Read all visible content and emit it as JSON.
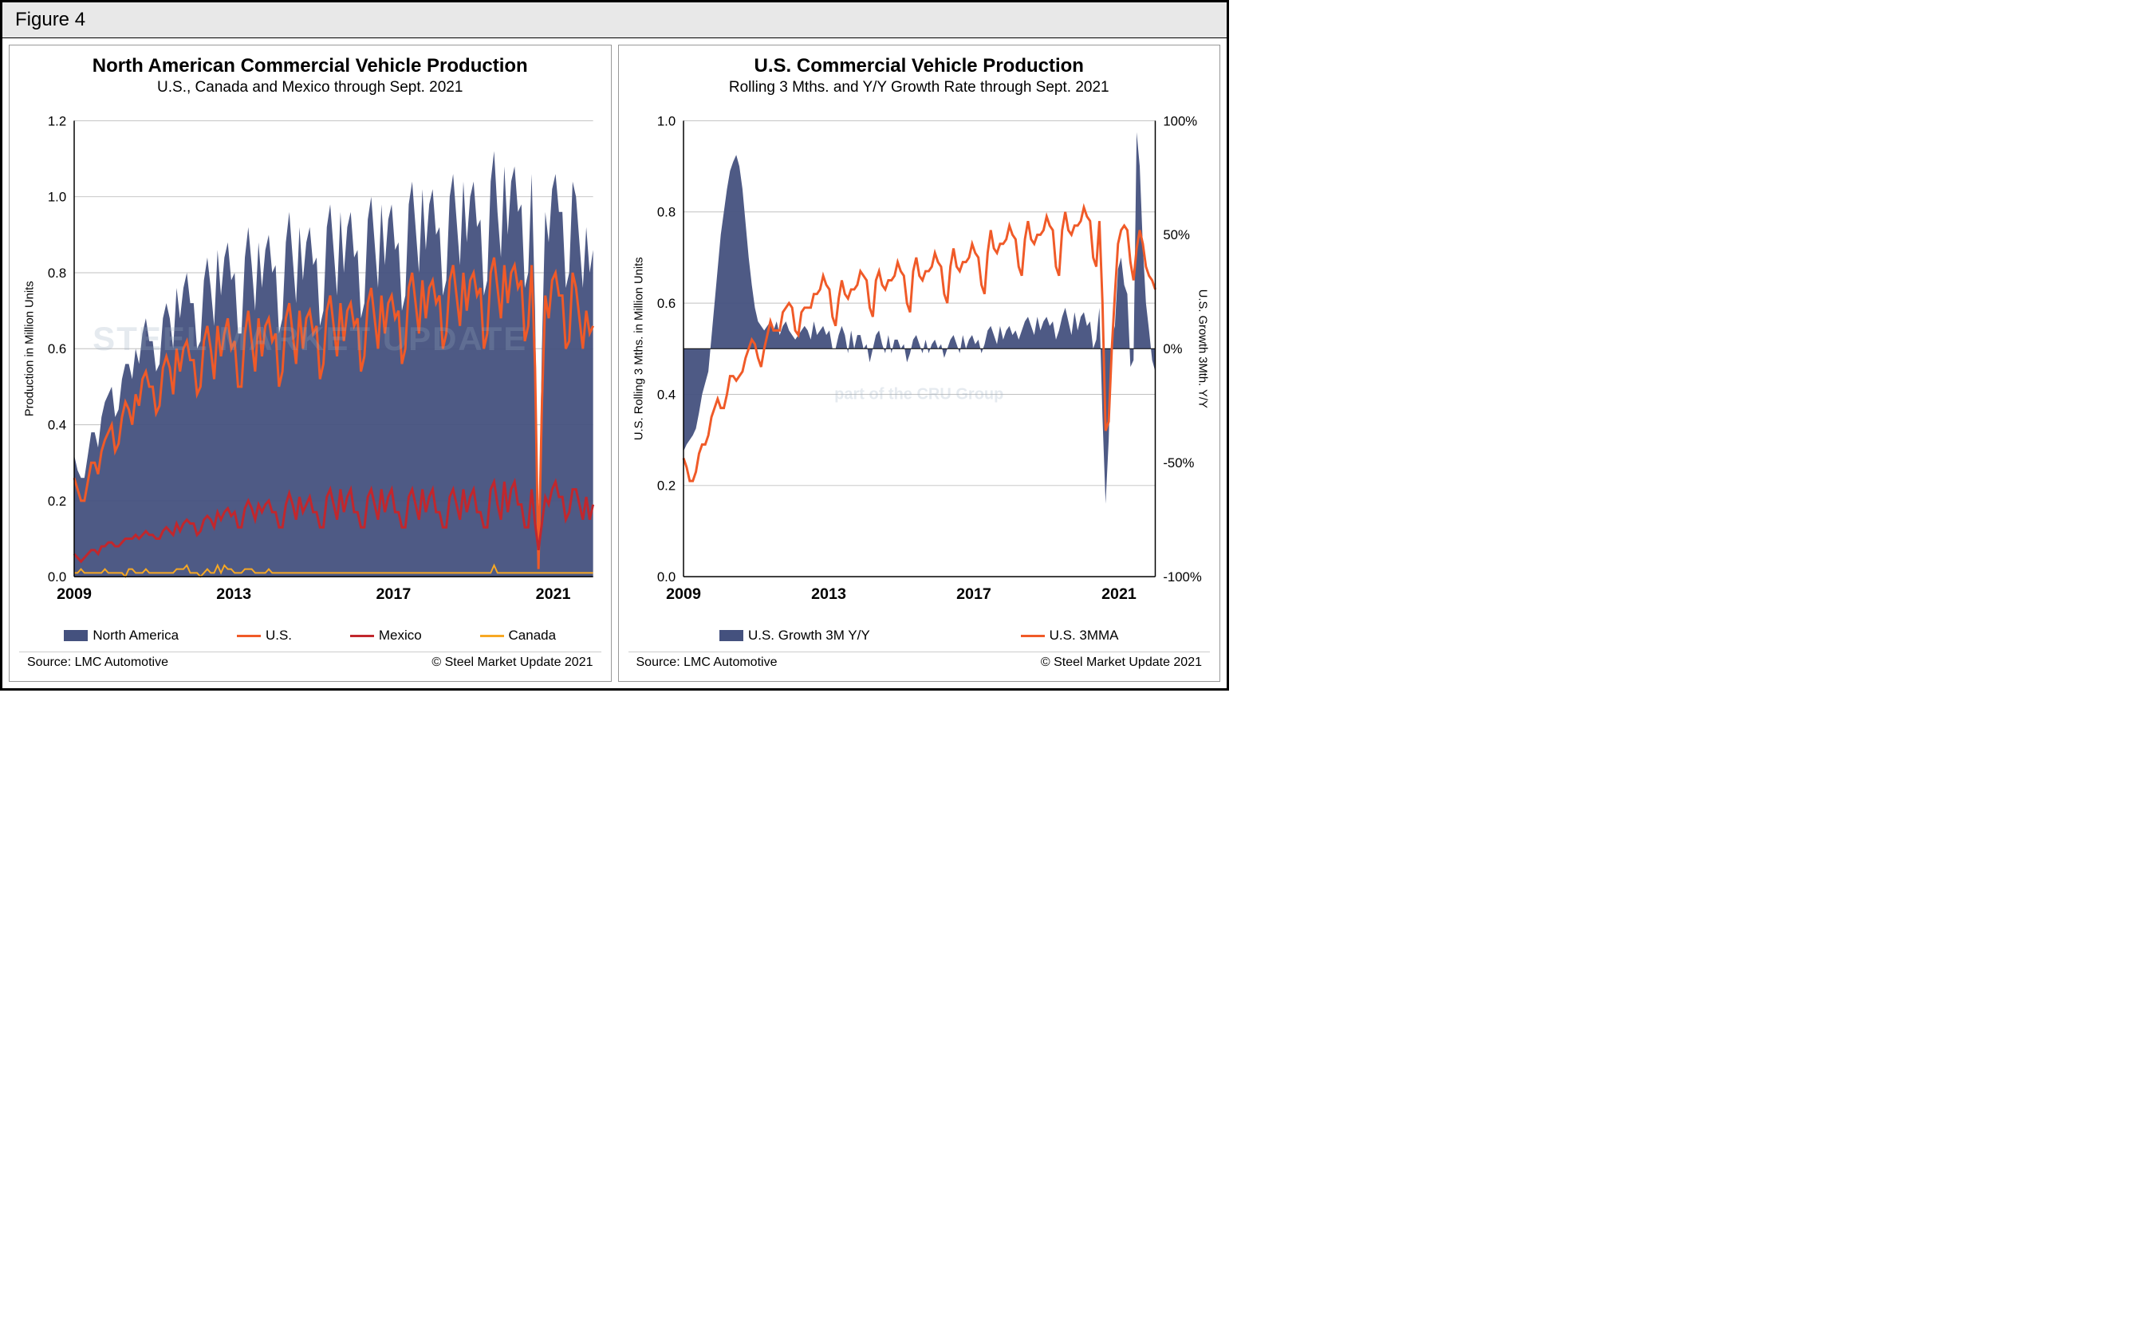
{
  "figure_label": "Figure 4",
  "watermark_main": "STEEL MARKET UPDATE",
  "watermark_sub": "part of the CRU Group",
  "left_chart": {
    "type": "area+line",
    "title": "North American Commercial Vehicle Production",
    "subtitle": "U.S., Canada and Mexico through Sept. 2021",
    "y_axis_label": "Production in Million Units",
    "x_ticks": [
      "2009",
      "2013",
      "2017",
      "2021"
    ],
    "y_ticks": [
      "0.0",
      "0.2",
      "0.4",
      "0.6",
      "0.8",
      "1.0",
      "1.2"
    ],
    "ylim": [
      0.0,
      1.2
    ],
    "xlim": [
      2009,
      2022
    ],
    "background_color": "#ffffff",
    "grid_color": "#c0c0c0",
    "series": {
      "north_america": {
        "type": "area",
        "color": "#44517e",
        "label": "North America",
        "data": [
          0.32,
          0.28,
          0.26,
          0.26,
          0.32,
          0.38,
          0.38,
          0.34,
          0.42,
          0.46,
          0.48,
          0.5,
          0.42,
          0.44,
          0.52,
          0.56,
          0.56,
          0.52,
          0.6,
          0.56,
          0.64,
          0.68,
          0.62,
          0.62,
          0.54,
          0.56,
          0.68,
          0.72,
          0.68,
          0.6,
          0.76,
          0.68,
          0.76,
          0.8,
          0.72,
          0.72,
          0.6,
          0.62,
          0.78,
          0.84,
          0.76,
          0.66,
          0.86,
          0.74,
          0.84,
          0.88,
          0.78,
          0.8,
          0.64,
          0.64,
          0.84,
          0.92,
          0.82,
          0.7,
          0.88,
          0.76,
          0.86,
          0.9,
          0.8,
          0.82,
          0.64,
          0.68,
          0.88,
          0.96,
          0.84,
          0.72,
          0.92,
          0.78,
          0.88,
          0.92,
          0.82,
          0.84,
          0.66,
          0.7,
          0.92,
          0.98,
          0.86,
          0.74,
          0.96,
          0.8,
          0.92,
          0.96,
          0.84,
          0.86,
          0.68,
          0.72,
          0.94,
          1.0,
          0.88,
          0.76,
          0.98,
          0.82,
          0.94,
          0.98,
          0.86,
          0.88,
          0.7,
          0.74,
          0.98,
          1.04,
          0.92,
          0.8,
          1.02,
          0.86,
          0.98,
          1.02,
          0.9,
          0.92,
          0.74,
          0.78,
          1.0,
          1.06,
          0.94,
          0.82,
          1.04,
          0.88,
          1.0,
          1.04,
          0.92,
          0.94,
          0.74,
          0.78,
          1.04,
          1.12,
          0.96,
          0.84,
          1.08,
          0.9,
          1.04,
          1.08,
          0.96,
          0.98,
          0.76,
          0.8,
          1.06,
          0.7,
          0.1,
          0.6,
          0.96,
          0.88,
          1.02,
          1.06,
          0.96,
          0.96,
          0.76,
          0.8,
          1.04,
          1.0,
          0.88,
          0.76,
          0.92,
          0.8,
          0.86
        ]
      },
      "us": {
        "type": "line",
        "color": "#f05a28",
        "width": 3,
        "label": "U.S.",
        "data": [
          0.26,
          0.23,
          0.2,
          0.2,
          0.25,
          0.3,
          0.3,
          0.27,
          0.33,
          0.36,
          0.38,
          0.4,
          0.33,
          0.35,
          0.42,
          0.46,
          0.44,
          0.4,
          0.48,
          0.45,
          0.52,
          0.54,
          0.5,
          0.5,
          0.43,
          0.45,
          0.55,
          0.58,
          0.55,
          0.48,
          0.6,
          0.54,
          0.6,
          0.62,
          0.57,
          0.57,
          0.48,
          0.5,
          0.62,
          0.66,
          0.6,
          0.52,
          0.66,
          0.58,
          0.64,
          0.68,
          0.6,
          0.62,
          0.5,
          0.5,
          0.64,
          0.7,
          0.62,
          0.54,
          0.68,
          0.58,
          0.66,
          0.68,
          0.62,
          0.64,
          0.5,
          0.54,
          0.68,
          0.72,
          0.64,
          0.56,
          0.7,
          0.6,
          0.68,
          0.7,
          0.64,
          0.66,
          0.52,
          0.56,
          0.7,
          0.74,
          0.66,
          0.58,
          0.72,
          0.62,
          0.7,
          0.72,
          0.66,
          0.68,
          0.54,
          0.58,
          0.72,
          0.76,
          0.68,
          0.6,
          0.74,
          0.64,
          0.72,
          0.74,
          0.68,
          0.7,
          0.56,
          0.6,
          0.76,
          0.8,
          0.72,
          0.64,
          0.78,
          0.68,
          0.76,
          0.78,
          0.72,
          0.74,
          0.6,
          0.64,
          0.78,
          0.82,
          0.74,
          0.66,
          0.8,
          0.7,
          0.78,
          0.8,
          0.74,
          0.76,
          0.6,
          0.64,
          0.8,
          0.84,
          0.76,
          0.68,
          0.82,
          0.72,
          0.8,
          0.82,
          0.76,
          0.78,
          0.62,
          0.66,
          0.82,
          0.55,
          0.02,
          0.45,
          0.74,
          0.68,
          0.78,
          0.8,
          0.74,
          0.74,
          0.6,
          0.62,
          0.8,
          0.76,
          0.68,
          0.6,
          0.7,
          0.64,
          0.66
        ]
      },
      "mexico": {
        "type": "line",
        "color": "#c1272d",
        "width": 3,
        "label": "Mexico",
        "data": [
          0.06,
          0.05,
          0.04,
          0.05,
          0.06,
          0.07,
          0.07,
          0.06,
          0.08,
          0.08,
          0.09,
          0.09,
          0.08,
          0.08,
          0.09,
          0.1,
          0.1,
          0.1,
          0.11,
          0.1,
          0.11,
          0.12,
          0.11,
          0.11,
          0.1,
          0.1,
          0.12,
          0.13,
          0.12,
          0.11,
          0.14,
          0.12,
          0.14,
          0.15,
          0.14,
          0.14,
          0.11,
          0.12,
          0.15,
          0.16,
          0.15,
          0.13,
          0.17,
          0.15,
          0.17,
          0.18,
          0.16,
          0.17,
          0.13,
          0.13,
          0.18,
          0.2,
          0.18,
          0.15,
          0.19,
          0.17,
          0.19,
          0.2,
          0.17,
          0.17,
          0.13,
          0.13,
          0.19,
          0.22,
          0.19,
          0.15,
          0.21,
          0.17,
          0.19,
          0.21,
          0.17,
          0.17,
          0.13,
          0.13,
          0.21,
          0.23,
          0.19,
          0.15,
          0.23,
          0.17,
          0.21,
          0.23,
          0.17,
          0.17,
          0.13,
          0.13,
          0.21,
          0.23,
          0.19,
          0.15,
          0.23,
          0.17,
          0.21,
          0.23,
          0.17,
          0.17,
          0.13,
          0.13,
          0.21,
          0.23,
          0.19,
          0.15,
          0.23,
          0.17,
          0.21,
          0.23,
          0.17,
          0.17,
          0.13,
          0.13,
          0.21,
          0.23,
          0.19,
          0.15,
          0.23,
          0.17,
          0.21,
          0.23,
          0.17,
          0.17,
          0.13,
          0.13,
          0.23,
          0.25,
          0.19,
          0.15,
          0.25,
          0.17,
          0.23,
          0.25,
          0.19,
          0.19,
          0.13,
          0.13,
          0.23,
          0.14,
          0.07,
          0.14,
          0.21,
          0.19,
          0.23,
          0.25,
          0.21,
          0.21,
          0.15,
          0.17,
          0.23,
          0.23,
          0.19,
          0.15,
          0.21,
          0.15,
          0.19
        ]
      },
      "canada": {
        "type": "line",
        "color": "#f7a823",
        "width": 2,
        "label": "Canada",
        "data": [
          0.01,
          0.01,
          0.02,
          0.01,
          0.01,
          0.01,
          0.01,
          0.01,
          0.01,
          0.02,
          0.01,
          0.01,
          0.01,
          0.01,
          0.01,
          0.0,
          0.02,
          0.02,
          0.01,
          0.01,
          0.01,
          0.02,
          0.01,
          0.01,
          0.01,
          0.01,
          0.01,
          0.01,
          0.01,
          0.01,
          0.02,
          0.02,
          0.02,
          0.03,
          0.01,
          0.01,
          0.01,
          0.0,
          0.01,
          0.02,
          0.01,
          0.01,
          0.03,
          0.01,
          0.03,
          0.02,
          0.02,
          0.01,
          0.01,
          0.01,
          0.02,
          0.02,
          0.02,
          0.01,
          0.01,
          0.01,
          0.01,
          0.02,
          0.01,
          0.01,
          0.01,
          0.01,
          0.01,
          0.01,
          0.01,
          0.01,
          0.01,
          0.01,
          0.01,
          0.01,
          0.01,
          0.01,
          0.01,
          0.01,
          0.01,
          0.01,
          0.01,
          0.01,
          0.01,
          0.01,
          0.01,
          0.01,
          0.01,
          0.01,
          0.01,
          0.01,
          0.01,
          0.01,
          0.01,
          0.01,
          0.01,
          0.01,
          0.01,
          0.01,
          0.01,
          0.01,
          0.01,
          0.01,
          0.01,
          0.01,
          0.01,
          0.01,
          0.01,
          0.01,
          0.01,
          0.01,
          0.01,
          0.01,
          0.01,
          0.01,
          0.01,
          0.01,
          0.01,
          0.01,
          0.01,
          0.01,
          0.01,
          0.01,
          0.01,
          0.01,
          0.01,
          0.01,
          0.01,
          0.03,
          0.01,
          0.01,
          0.01,
          0.01,
          0.01,
          0.01,
          0.01,
          0.01,
          0.01,
          0.01,
          0.01,
          0.01,
          0.01,
          0.01,
          0.01,
          0.01,
          0.01,
          0.01,
          0.01,
          0.01,
          0.01,
          0.01,
          0.01,
          0.01,
          0.01,
          0.01,
          0.01,
          0.01,
          0.01
        ]
      }
    },
    "legend": [
      {
        "label": "North America",
        "color": "#44517e",
        "type": "swatch"
      },
      {
        "label": "U.S.",
        "color": "#f05a28",
        "type": "line"
      },
      {
        "label": "Mexico",
        "color": "#c1272d",
        "type": "line"
      },
      {
        "label": "Canada",
        "color": "#f7a823",
        "type": "line"
      }
    ],
    "source": "Source: LMC Automotive",
    "copyright": "© Steel Market Update 2021"
  },
  "right_chart": {
    "type": "area+line-dual-axis",
    "title": "U.S. Commercial Vehicle Production",
    "subtitle": "Rolling 3 Mths. and Y/Y Growth Rate through Sept. 2021",
    "y_axis_label_left": "U.S. Rolling 3 Mths. in Million Units",
    "y_axis_label_right": "U.S. Growth 3Mth. Y/Y",
    "x_ticks": [
      "2009",
      "2013",
      "2017",
      "2021"
    ],
    "y_ticks_left": [
      "0.0",
      "0.2",
      "0.4",
      "0.6",
      "0.8",
      "1.0"
    ],
    "y_ticks_right": [
      "-100%",
      "-50%",
      "0%",
      "50%",
      "100%"
    ],
    "ylim_left": [
      0.0,
      1.0
    ],
    "ylim_right": [
      -100,
      100
    ],
    "xlim": [
      2009,
      2022
    ],
    "zero_line_value": 0,
    "background_color": "#ffffff",
    "grid_color": "#c0c0c0",
    "series": {
      "growth": {
        "type": "area-centered",
        "color": "#44517e",
        "label": "U.S. Growth 3M Y/Y",
        "data": [
          -45,
          -42,
          -40,
          -38,
          -35,
          -28,
          -20,
          -15,
          -10,
          5,
          20,
          35,
          50,
          60,
          70,
          78,
          82,
          85,
          80,
          70,
          55,
          40,
          28,
          18,
          12,
          10,
          8,
          10,
          12,
          8,
          12,
          6,
          10,
          12,
          8,
          6,
          4,
          6,
          8,
          10,
          8,
          4,
          12,
          6,
          8,
          10,
          6,
          8,
          0,
          0,
          6,
          10,
          6,
          -2,
          8,
          0,
          6,
          6,
          0,
          2,
          -6,
          0,
          6,
          8,
          2,
          -2,
          6,
          -2,
          4,
          4,
          0,
          2,
          -6,
          -2,
          4,
          6,
          2,
          -2,
          4,
          -2,
          2,
          4,
          0,
          2,
          -4,
          0,
          4,
          6,
          2,
          -2,
          6,
          0,
          4,
          6,
          2,
          4,
          -2,
          2,
          8,
          10,
          6,
          2,
          10,
          4,
          8,
          10,
          6,
          8,
          4,
          8,
          12,
          14,
          10,
          6,
          14,
          8,
          12,
          14,
          10,
          12,
          4,
          8,
          14,
          18,
          12,
          6,
          16,
          8,
          14,
          16,
          10,
          12,
          0,
          4,
          18,
          -30,
          -68,
          -40,
          5,
          10,
          35,
          40,
          28,
          24,
          -8,
          -5,
          95,
          80,
          45,
          20,
          8,
          -5,
          -10
        ]
      },
      "mma": {
        "type": "line",
        "color": "#f05a28",
        "width": 3,
        "label": "U.S. 3MMA",
        "data": [
          0.26,
          0.24,
          0.21,
          0.21,
          0.23,
          0.27,
          0.29,
          0.29,
          0.31,
          0.35,
          0.37,
          0.39,
          0.37,
          0.37,
          0.4,
          0.44,
          0.44,
          0.43,
          0.44,
          0.45,
          0.48,
          0.5,
          0.52,
          0.51,
          0.48,
          0.46,
          0.5,
          0.53,
          0.56,
          0.54,
          0.54,
          0.54,
          0.58,
          0.59,
          0.6,
          0.59,
          0.54,
          0.53,
          0.58,
          0.59,
          0.59,
          0.59,
          0.62,
          0.62,
          0.63,
          0.66,
          0.64,
          0.63,
          0.57,
          0.55,
          0.61,
          0.65,
          0.62,
          0.61,
          0.63,
          0.63,
          0.64,
          0.67,
          0.66,
          0.65,
          0.59,
          0.57,
          0.65,
          0.67,
          0.64,
          0.63,
          0.65,
          0.65,
          0.66,
          0.69,
          0.67,
          0.66,
          0.6,
          0.58,
          0.67,
          0.7,
          0.66,
          0.65,
          0.67,
          0.67,
          0.68,
          0.71,
          0.69,
          0.68,
          0.62,
          0.6,
          0.68,
          0.72,
          0.68,
          0.67,
          0.69,
          0.69,
          0.7,
          0.73,
          0.71,
          0.7,
          0.64,
          0.62,
          0.71,
          0.76,
          0.72,
          0.71,
          0.73,
          0.73,
          0.74,
          0.77,
          0.75,
          0.74,
          0.68,
          0.66,
          0.74,
          0.78,
          0.74,
          0.73,
          0.75,
          0.75,
          0.76,
          0.79,
          0.77,
          0.76,
          0.68,
          0.66,
          0.76,
          0.8,
          0.76,
          0.75,
          0.77,
          0.77,
          0.78,
          0.81,
          0.79,
          0.78,
          0.7,
          0.68,
          0.78,
          0.6,
          0.32,
          0.34,
          0.5,
          0.62,
          0.73,
          0.76,
          0.77,
          0.76,
          0.69,
          0.65,
          0.72,
          0.76,
          0.73,
          0.68,
          0.66,
          0.65,
          0.63
        ]
      }
    },
    "legend": [
      {
        "label": "U.S. Growth 3M Y/Y",
        "color": "#44517e",
        "type": "swatch"
      },
      {
        "label": "U.S. 3MMA",
        "color": "#f05a28",
        "type": "line"
      }
    ],
    "source": "Source: LMC Automotive",
    "copyright": "© Steel Market Update 2021"
  }
}
